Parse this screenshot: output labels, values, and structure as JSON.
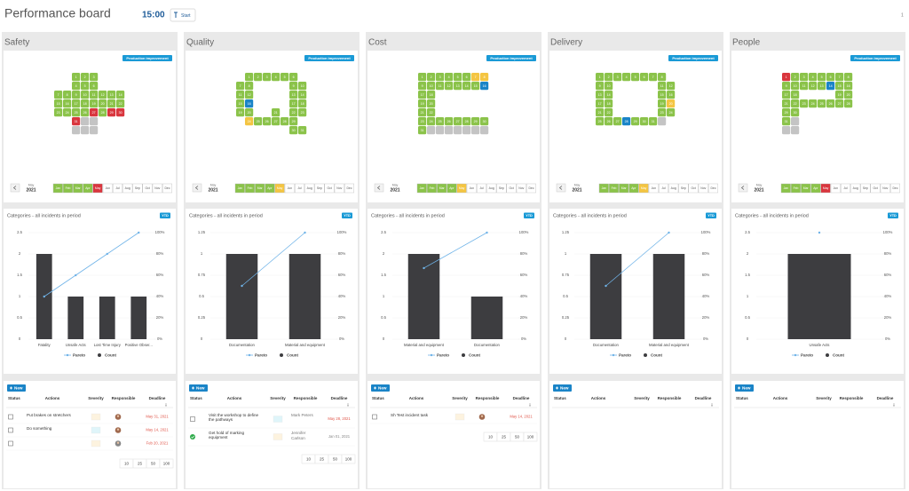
{
  "header": {
    "title": "Performance board",
    "time": "15:00",
    "start": "Start",
    "page": "1"
  },
  "days": [
    1,
    2,
    3,
    4,
    5,
    6,
    7,
    8,
    9,
    10,
    11,
    12,
    13,
    14,
    15,
    16,
    17,
    18,
    19,
    20,
    21,
    22,
    23,
    24,
    25,
    26,
    27,
    28,
    29,
    30,
    31
  ],
  "months": [
    "Jan",
    "Feb",
    "Mar",
    "Apr",
    "May",
    "Jun",
    "Jul",
    "Aug",
    "Sep",
    "Oct",
    "Nov",
    "Dec"
  ],
  "nav": {
    "month": "May",
    "year": "2021"
  },
  "badge": "Production improvement",
  "new_button": "New",
  "table_headers": [
    "Status",
    "Actions",
    "Severity",
    "Responsible",
    "Deadline"
  ],
  "page_sizes": [
    10,
    25,
    50,
    100
  ],
  "cell_color": "#8bc34a",
  "boards": [
    {
      "name": "Safety",
      "marked": {
        "27": "#d9363e",
        "29": "#d9363e",
        "30": "#d9363e",
        "31": "#d9363e"
      },
      "month_colors": [
        "#8bc34a",
        "#8bc34a",
        "#8bc34a",
        "#8bc34a",
        "#d9363e",
        "#ffffff",
        "#ffffff",
        "#ffffff",
        "#ffffff",
        "#ffffff",
        "#ffffff",
        "#ffffff"
      ],
      "actions": [
        {
          "text": "Put brakes on stretchers",
          "deadline": "May 31, 2021",
          "severity": "#fdf3df",
          "overdue": true,
          "avatar": true
        },
        {
          "text": "Do something",
          "deadline": "May 14, 2021",
          "severity": "#dff5fa",
          "overdue": true,
          "avatar": true
        },
        {
          "deadline": "Feb 20, 2021",
          "severity": "#fdf3df",
          "overdue": true,
          "avatar": true
        }
      ]
    },
    {
      "name": "Quality",
      "marked": {
        "16": "#1a84c7",
        "24": "#f4c542"
      },
      "month_colors": [
        "#8bc34a",
        "#8bc34a",
        "#8bc34a",
        "#8bc34a",
        "#f4c542",
        "#ffffff",
        "#ffffff",
        "#ffffff",
        "#ffffff",
        "#ffffff",
        "#ffffff",
        "#ffffff"
      ],
      "actions": [
        {
          "text": "Visit the workshop to define the pathways",
          "responsible": "Mark Peters",
          "deadline": "May 28, 2021",
          "severity": "#dff5fa",
          "overdue": true
        },
        {
          "text": "Get hold of marking equipment",
          "responsible": "Jennifer Carlson",
          "deadline": "Jan 01, 2021",
          "severity": "#fdf3df",
          "overdue": false,
          "done": true
        }
      ]
    },
    {
      "name": "Cost",
      "marked": {
        "7": "#f4c542",
        "8": "#f4c542",
        "16": "#1a84c7"
      },
      "month_colors": [
        "#8bc34a",
        "#8bc34a",
        "#8bc34a",
        "#8bc34a",
        "#f4c542",
        "#ffffff",
        "#ffffff",
        "#ffffff",
        "#ffffff",
        "#ffffff",
        "#ffffff",
        "#ffffff"
      ],
      "actions": [
        {
          "text": "Sh Test incident task",
          "deadline": "May 14, 2021",
          "severity": "#fdf3df",
          "overdue": true,
          "avatar": true
        }
      ]
    },
    {
      "name": "Delivery",
      "marked": {
        "20": "#f4c542",
        "28": "#1a84c7"
      },
      "month_colors": [
        "#8bc34a",
        "#8bc34a",
        "#8bc34a",
        "#8bc34a",
        "#f4c542",
        "#ffffff",
        "#ffffff",
        "#ffffff",
        "#ffffff",
        "#ffffff",
        "#ffffff",
        "#ffffff"
      ],
      "actions": []
    },
    {
      "name": "People",
      "marked": {
        "1": "#d9363e",
        "14": "#1a84c7"
      },
      "month_colors": [
        "#8bc34a",
        "#8bc34a",
        "#8bc34a",
        "#8bc34a",
        "#d9363e",
        "#ffffff",
        "#ffffff",
        "#ffffff",
        "#ffffff",
        "#ffffff",
        "#ffffff",
        "#ffffff"
      ],
      "actions": []
    }
  ],
  "chart_data": [
    {
      "type": "pareto",
      "title": "Categories - all incidents in period",
      "period": "YTD",
      "grid": true,
      "categories": [
        "Fatality",
        "Unsafe Acts",
        "Lost Time Injury",
        "Positive Obser..."
      ],
      "series": [
        {
          "name": "Count",
          "color": "#3d3d40",
          "values": [
            2,
            1,
            1,
            1
          ]
        },
        {
          "name": "Pareto",
          "color": "#6fb3e8",
          "axis": "y2",
          "values": [
            40,
            60,
            80,
            100
          ]
        }
      ],
      "ylim": [
        0,
        2.5
      ],
      "yticks": [
        0,
        0.5,
        1,
        1.5,
        2,
        2.5
      ],
      "y2lim": [
        0,
        100
      ],
      "y2ticks": [
        {
          "value": 0,
          "label": "0%"
        },
        {
          "value": 20,
          "label": "20%"
        },
        {
          "value": 40,
          "label": "40%"
        },
        {
          "value": 60,
          "label": "60%"
        },
        {
          "value": 80,
          "label": "80%"
        },
        {
          "value": 100,
          "label": "100%"
        }
      ]
    },
    {
      "type": "pareto",
      "title": "Categories - all incidents in period",
      "period": "YTD",
      "grid": true,
      "categories": [
        "Documentation",
        "Material and equipment"
      ],
      "series": [
        {
          "name": "Count",
          "color": "#3d3d40",
          "values": [
            1,
            1
          ]
        },
        {
          "name": "Pareto",
          "color": "#6fb3e8",
          "axis": "y2",
          "values": [
            50,
            100
          ]
        }
      ],
      "ylim": [
        0,
        1.25
      ],
      "yticks": [
        0,
        0.25,
        0.5,
        0.75,
        1,
        1.25
      ],
      "y2lim": [
        0,
        100
      ],
      "y2ticks": [
        {
          "value": 0,
          "label": "0%"
        },
        {
          "value": 20,
          "label": "20%"
        },
        {
          "value": 40,
          "label": "40%"
        },
        {
          "value": 60,
          "label": "60%"
        },
        {
          "value": 80,
          "label": "80%"
        },
        {
          "value": 100,
          "label": "100%"
        }
      ]
    },
    {
      "type": "pareto",
      "title": "Categories - all incidents in period",
      "period": "YTD",
      "grid": true,
      "categories": [
        "Material and equipment",
        "Documentation"
      ],
      "series": [
        {
          "name": "Count",
          "color": "#3d3d40",
          "values": [
            2,
            1
          ]
        },
        {
          "name": "Pareto",
          "color": "#6fb3e8",
          "axis": "y2",
          "values": [
            66.7,
            100
          ]
        }
      ],
      "ylim": [
        0,
        2.5
      ],
      "yticks": [
        0,
        0.5,
        1,
        1.5,
        2,
        2.5
      ],
      "y2lim": [
        0,
        100
      ],
      "y2ticks": [
        {
          "value": 0,
          "label": "0%"
        },
        {
          "value": 20,
          "label": "20%"
        },
        {
          "value": 40,
          "label": "40%"
        },
        {
          "value": 60,
          "label": "60%"
        },
        {
          "value": 80,
          "label": "80%"
        },
        {
          "value": 100,
          "label": "100%"
        }
      ]
    },
    {
      "type": "pareto",
      "title": "Categories - all incidents in period",
      "period": "YTD",
      "grid": true,
      "categories": [
        "Documentation",
        "Material and equipment"
      ],
      "series": [
        {
          "name": "Count",
          "color": "#3d3d40",
          "values": [
            1,
            1
          ]
        },
        {
          "name": "Pareto",
          "color": "#6fb3e8",
          "axis": "y2",
          "values": [
            50,
            100
          ]
        }
      ],
      "ylim": [
        0,
        1.25
      ],
      "yticks": [
        0,
        0.25,
        0.5,
        0.75,
        1,
        1.25
      ],
      "y2lim": [
        0,
        100
      ],
      "y2ticks": [
        {
          "value": 0,
          "label": "0%"
        },
        {
          "value": 20,
          "label": "20%"
        },
        {
          "value": 40,
          "label": "40%"
        },
        {
          "value": 60,
          "label": "60%"
        },
        {
          "value": 80,
          "label": "80%"
        },
        {
          "value": 100,
          "label": "100%"
        }
      ]
    },
    {
      "type": "pareto",
      "title": "Categories - all incidents in period",
      "period": "YTD",
      "grid": true,
      "categories": [
        "Unsafe Acts"
      ],
      "series": [
        {
          "name": "Count",
          "color": "#3d3d40",
          "values": [
            2
          ]
        },
        {
          "name": "Pareto",
          "color": "#6fb3e8",
          "axis": "y2",
          "values": [
            100
          ]
        }
      ],
      "ylim": [
        0,
        2.5
      ],
      "yticks": [
        0,
        0.5,
        1,
        1.5,
        2,
        2.5
      ],
      "y2lim": [
        0,
        100
      ],
      "y2ticks": [
        {
          "value": 0,
          "label": "0%"
        },
        {
          "value": 20,
          "label": "20%"
        },
        {
          "value": 40,
          "label": "40%"
        },
        {
          "value": 60,
          "label": "60%"
        },
        {
          "value": 80,
          "label": "80%"
        },
        {
          "value": 100,
          "label": "100%"
        }
      ]
    }
  ]
}
